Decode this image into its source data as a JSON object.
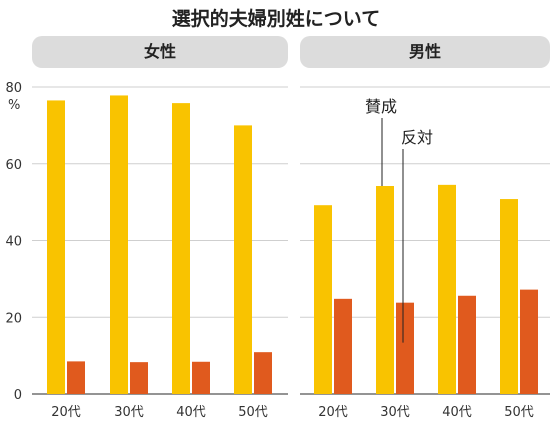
{
  "title": "選択的夫婦別姓について",
  "chart_data": [
    {
      "type": "bar",
      "panel": "女性",
      "categories": [
        "20代",
        "30代",
        "40代",
        "50代"
      ],
      "series": [
        {
          "name": "賛成",
          "color": "#f9c300",
          "values": [
            76.5,
            77.8,
            75.8,
            70.0
          ]
        },
        {
          "name": "反対",
          "color": "#e05a1e",
          "values": [
            8.5,
            8.3,
            8.4,
            10.9
          ]
        }
      ],
      "ylim": [
        0,
        80
      ],
      "yticks": [
        0,
        20,
        40,
        60,
        80
      ],
      "yunit": "%",
      "grid": true
    },
    {
      "type": "bar",
      "panel": "男性",
      "categories": [
        "20代",
        "30代",
        "40代",
        "50代"
      ],
      "series": [
        {
          "name": "賛成",
          "color": "#f9c300",
          "values": [
            49.2,
            54.2,
            54.5,
            50.8
          ]
        },
        {
          "name": "反対",
          "color": "#e05a1e",
          "values": [
            24.8,
            23.8,
            25.6,
            27.2
          ]
        }
      ],
      "ylim": [
        0,
        80
      ],
      "yticks": [
        0,
        20,
        40,
        60,
        80
      ],
      "grid": true,
      "annotations": [
        {
          "text": "賛成",
          "series": "賛成",
          "category": "30代"
        },
        {
          "text": "反対",
          "series": "反対",
          "category": "30代"
        }
      ]
    }
  ]
}
